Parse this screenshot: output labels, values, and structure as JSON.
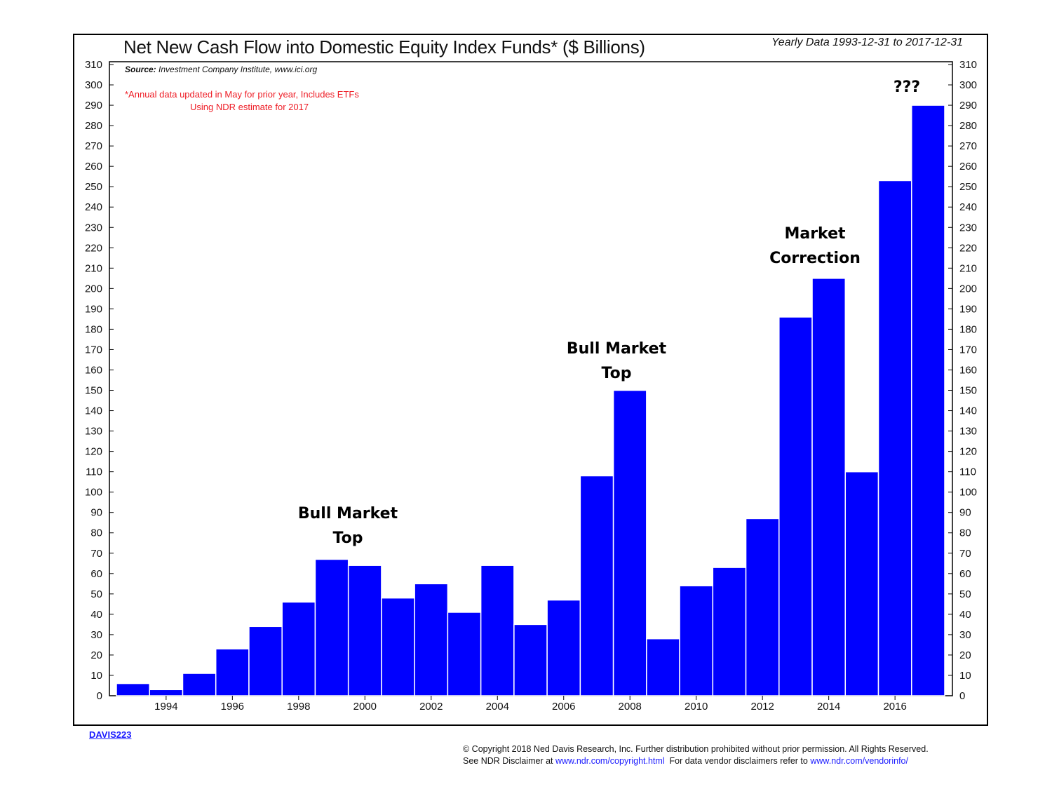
{
  "chart_data": {
    "type": "bar",
    "title": "Net New Cash Flow into Domestic Equity Index Funds* ($ Billions)",
    "date_range": "Yearly Data 1993-12-31 to 2017-12-31",
    "source_label": "Source:",
    "source_text": "Investment Company Institute, www.ici.org",
    "note_line1": "*Annual data updated in May for prior year, Includes ETFs",
    "note_line2": "Using NDR estimate for 2017",
    "categories": [
      "1993",
      "1994",
      "1995",
      "1996",
      "1997",
      "1998",
      "1999",
      "2000",
      "2001",
      "2002",
      "2003",
      "2004",
      "2005",
      "2006",
      "2007",
      "2008",
      "2009",
      "2010",
      "2011",
      "2012",
      "2013",
      "2014",
      "2015",
      "2016",
      "2017"
    ],
    "values": [
      6,
      3,
      11,
      23,
      34,
      46,
      67,
      64,
      48,
      55,
      41,
      64,
      35,
      47,
      108,
      150,
      28,
      54,
      63,
      87,
      186,
      205,
      110,
      253,
      290
    ],
    "x_tick_labels": [
      "1994",
      "1996",
      "1998",
      "2000",
      "2002",
      "2004",
      "2006",
      "2008",
      "2010",
      "2012",
      "2014",
      "2016"
    ],
    "y_tick_labels": [
      "0",
      "10",
      "20",
      "30",
      "40",
      "50",
      "60",
      "70",
      "80",
      "90",
      "100",
      "110",
      "120",
      "130",
      "140",
      "150",
      "160",
      "170",
      "180",
      "190",
      "200",
      "210",
      "220",
      "230",
      "240",
      "250",
      "260",
      "270",
      "280",
      "290",
      "300",
      "310"
    ],
    "ylim": [
      0,
      310
    ],
    "ytick_step": 10,
    "bar_color": "#0000ff",
    "annotations": [
      {
        "lines": [
          "Bull Market",
          "Top"
        ],
        "year": "1999"
      },
      {
        "lines": [
          "Bull Market",
          "Top"
        ],
        "year": "2008"
      },
      {
        "lines": [
          "Market",
          "Correction"
        ],
        "year": "2014"
      },
      {
        "lines": [
          "???"
        ],
        "year": "2017"
      }
    ],
    "chart_id": "DAVIS223",
    "copyright_line1": "© Copyright 2018 Ned Davis Research, Inc. Further distribution prohibited without prior permission. All Rights Reserved.",
    "copyright_line2_a": "See NDR Disclaimer at ",
    "copyright_link1": "www.ndr.com/copyright.html",
    "copyright_line2_b": "  For data vendor disclaimers refer to ",
    "copyright_link2": "www.ndr.com/vendorinfo/"
  }
}
